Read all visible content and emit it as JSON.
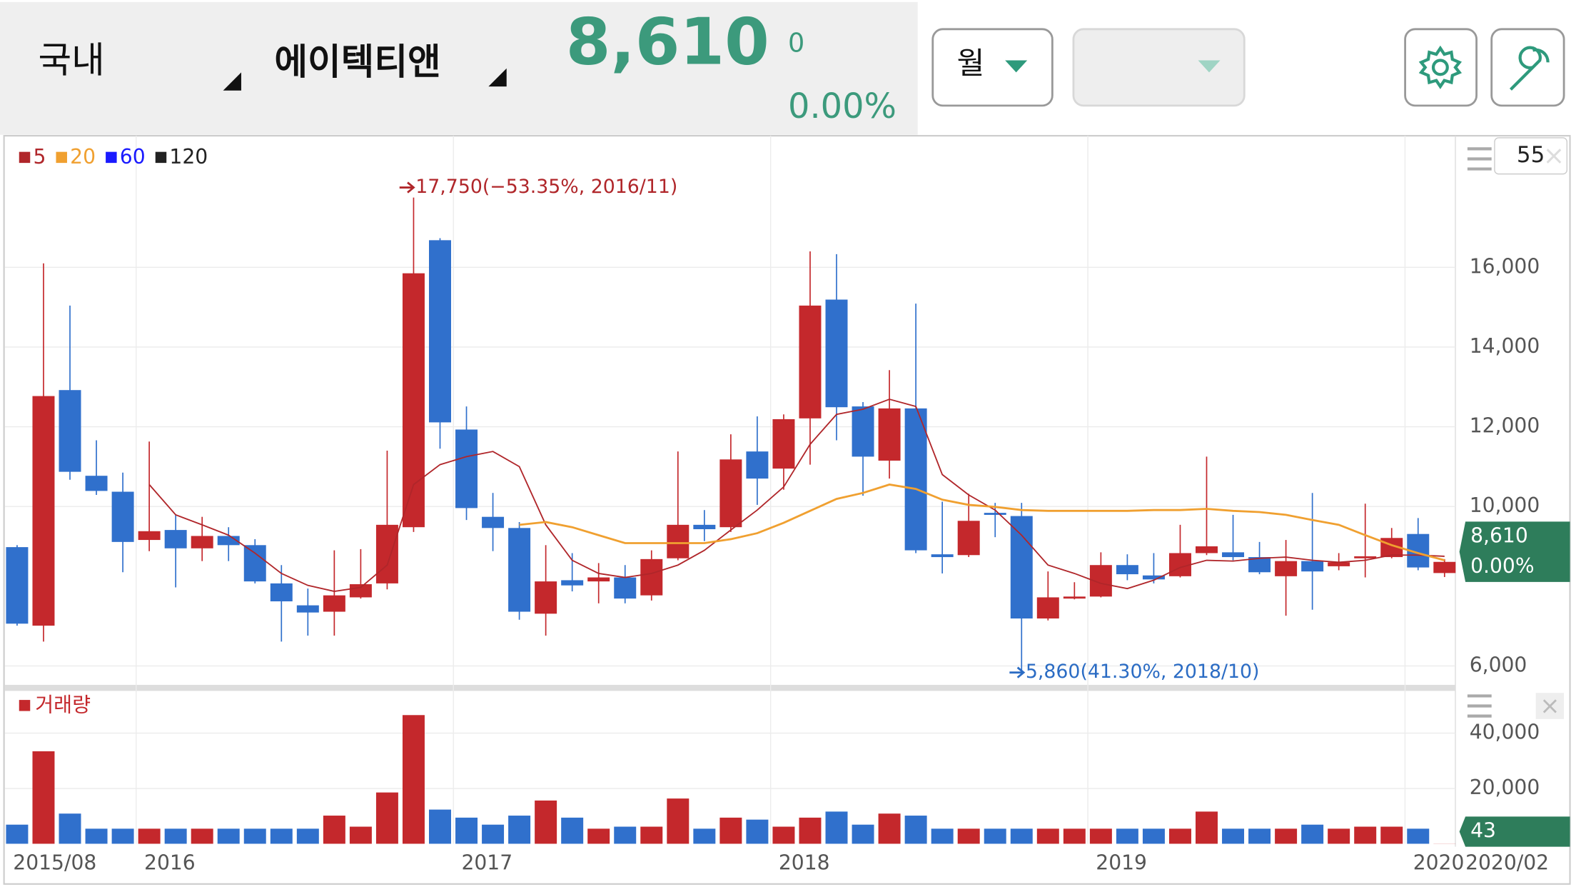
{
  "header": {
    "market": "국내",
    "name": "에이텍티앤",
    "price": "8,610",
    "change": "0",
    "change_pct": "0.00%"
  },
  "controls": {
    "period": "월"
  },
  "chart_data": {
    "type": "candlestick",
    "categories": [
      "2015/08",
      null,
      null,
      null,
      null,
      "2016",
      null,
      null,
      null,
      null,
      null,
      null,
      null,
      null,
      null,
      null,
      null,
      "2017",
      null,
      null,
      null,
      null,
      null,
      null,
      null,
      null,
      null,
      null,
      null,
      "2018",
      null,
      null,
      null,
      null,
      null,
      null,
      null,
      null,
      null,
      null,
      null,
      "2019",
      null,
      null,
      null,
      null,
      null,
      null,
      null,
      null,
      null,
      null,
      null,
      "2020",
      "2020/02"
    ],
    "open": [
      8980,
      7010,
      12920,
      10770,
      10370,
      9160,
      9410,
      8950,
      9260,
      9030,
      8070,
      7520,
      7360,
      7720,
      8070,
      9480,
      16680,
      11930,
      9740,
      9460,
      7310,
      8150,
      8120,
      8220,
      7770,
      8700,
      9540,
      9480,
      11380,
      10950,
      12210,
      15190,
      12510,
      11150,
      12460,
      8800,
      8780,
      9840,
      9760,
      7190,
      7690,
      7740,
      8530,
      8270,
      8250,
      8830,
      8850,
      8730,
      8250,
      8630,
      8500,
      8700,
      8730,
      9310,
      8330
    ],
    "high": [
      9030,
      16100,
      15040,
      11660,
      10850,
      11630,
      9790,
      9740,
      9480,
      9180,
      8530,
      7940,
      8900,
      8930,
      11400,
      17750,
      16730,
      12510,
      10340,
      9610,
      9030,
      8830,
      8580,
      8530,
      8900,
      11380,
      9910,
      11810,
      12260,
      12310,
      16400,
      16330,
      12620,
      13420,
      15090,
      10120,
      10320,
      10090,
      10090,
      8370,
      8100,
      8850,
      8800,
      8830,
      9540,
      11250,
      9790,
      9110,
      9160,
      10340,
      8830,
      10070,
      9460,
      9710,
      8680
    ],
    "low": [
      7010,
      6610,
      10670,
      10290,
      8350,
      8880,
      7970,
      8630,
      8630,
      8070,
      6610,
      6760,
      6760,
      7690,
      7920,
      9360,
      11450,
      9660,
      8880,
      7160,
      6760,
      7870,
      7570,
      7570,
      7640,
      8650,
      9130,
      9360,
      10040,
      10420,
      11050,
      11660,
      10270,
      10700,
      8830,
      8320,
      8730,
      9230,
      5860,
      7140,
      7670,
      7720,
      8150,
      8070,
      8220,
      8780,
      8650,
      8300,
      7260,
      7410,
      8400,
      8220,
      8700,
      8400,
      8230
    ],
    "close": [
      7060,
      12770,
      10870,
      10390,
      9110,
      9380,
      8950,
      9260,
      9030,
      8120,
      7620,
      7340,
      7770,
      8050,
      9540,
      15850,
      12110,
      9960,
      9460,
      7360,
      8120,
      8020,
      8220,
      7690,
      8680,
      9540,
      9430,
      11180,
      10700,
      12190,
      15040,
      12490,
      11250,
      12460,
      8900,
      8730,
      9640,
      9790,
      7190,
      7720,
      7740,
      8530,
      8300,
      8170,
      8830,
      9000,
      8730,
      8350,
      8630,
      8370,
      8600,
      8750,
      9210,
      8470,
      8610
    ],
    "up_color": "#c4282c",
    "down_color": "#3070cc",
    "series": [
      {
        "name": "5",
        "color": "#b0262a",
        "values": [
          null,
          null,
          null,
          null,
          null,
          10550,
          9790,
          9540,
          9280,
          8830,
          8320,
          8020,
          7870,
          7970,
          8530,
          10550,
          11050,
          11250,
          11380,
          11000,
          9540,
          8650,
          8320,
          8220,
          8320,
          8530,
          8900,
          9410,
          9910,
          10490,
          11560,
          12310,
          12440,
          12690,
          12510,
          10800,
          10290,
          9910,
          9280,
          8530,
          8320,
          8070,
          7940,
          8150,
          8470,
          8650,
          8630,
          8700,
          8730,
          8650,
          8600,
          8650,
          8780,
          8780,
          8750
        ]
      },
      {
        "name": "20",
        "color": "#f0a030",
        "values": [
          null,
          null,
          null,
          null,
          null,
          null,
          null,
          null,
          null,
          null,
          null,
          null,
          null,
          null,
          null,
          null,
          null,
          null,
          null,
          9540,
          9610,
          9480,
          9280,
          9080,
          9080,
          9080,
          9080,
          9180,
          9330,
          9590,
          9890,
          10190,
          10340,
          10550,
          10440,
          10170,
          10040,
          9990,
          9910,
          9890,
          9890,
          9890,
          9890,
          9910,
          9910,
          9940,
          9890,
          9860,
          9790,
          9660,
          9540,
          9280,
          9030,
          8830,
          8650
        ]
      },
      {
        "name": "60",
        "color": "#1a1aff",
        "values": [
          null,
          null,
          null,
          null,
          null,
          null,
          null,
          null,
          null,
          null,
          null,
          null,
          null,
          null,
          null,
          null,
          null,
          null,
          null,
          null,
          null,
          null,
          null,
          null,
          null,
          null,
          null,
          null,
          null,
          null,
          null,
          null,
          null,
          null,
          null,
          null,
          null,
          null,
          null,
          null,
          null,
          null,
          null,
          null,
          null,
          null,
          null,
          null,
          null,
          null,
          null,
          null,
          null,
          null,
          null
        ]
      },
      {
        "name": "120",
        "color": "#222222",
        "values": [
          null,
          null,
          null,
          null,
          null,
          null,
          null,
          null,
          null,
          null,
          null,
          null,
          null,
          null,
          null,
          null,
          null,
          null,
          null,
          null,
          null,
          null,
          null,
          null,
          null,
          null,
          null,
          null,
          null,
          null,
          null,
          null,
          null,
          null,
          null,
          null,
          null,
          null,
          null,
          null,
          null,
          null,
          null,
          null,
          null,
          null,
          null,
          null,
          null,
          null,
          null,
          null,
          null,
          null,
          null
        ]
      }
    ],
    "ylim": [
      5550,
      19300
    ],
    "yticks": [
      {
        "value": 6000,
        "label": "6,000"
      },
      {
        "value": 10000,
        "label": "10,000"
      },
      {
        "value": 12000,
        "label": "12,000"
      },
      {
        "value": 14000,
        "label": "14,000"
      },
      {
        "value": 16000,
        "label": "16,000"
      }
    ],
    "grid": true,
    "high_annotation": "17,750(−53.35%, 2016/11)",
    "low_annotation": "5,860(41.30%, 2018/10)",
    "count": "55",
    "last_label": "8,610",
    "last_pct": "0.00%",
    "volume": {
      "name": "거래량",
      "color": "#c4282c",
      "values": [
        6910,
        33450,
        10910,
        5450,
        5450,
        5450,
        5450,
        5450,
        5450,
        5450,
        5450,
        5450,
        10180,
        6180,
        18550,
        46540,
        12360,
        9450,
        6910,
        10180,
        15640,
        9450,
        5450,
        6180,
        6180,
        16360,
        5450,
        9450,
        8730,
        6180,
        9450,
        11640,
        6910,
        10910,
        10180,
        5450,
        5450,
        5450,
        5450,
        5450,
        5450,
        5450,
        5450,
        5450,
        5450,
        11640,
        5450,
        5450,
        5450,
        6910,
        5450,
        6180,
        6180,
        5450,
        43
      ],
      "ylim": [
        0,
        54200
      ],
      "yticks": [
        {
          "value": 20000,
          "label": "20,000"
        },
        {
          "value": 40000,
          "label": "40,000"
        }
      ],
      "last_label": "43"
    }
  }
}
